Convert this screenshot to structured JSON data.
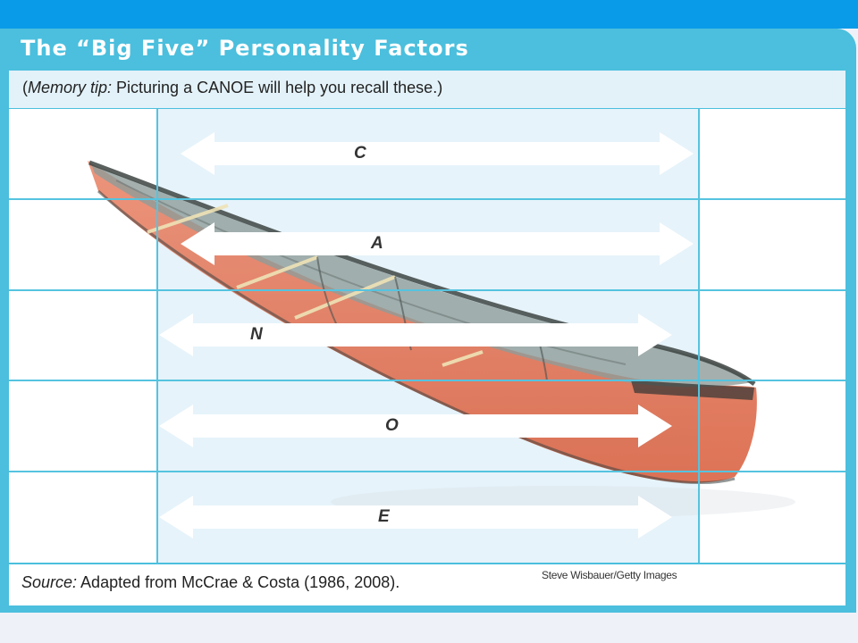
{
  "title": "The “Big Five” Personality Factors",
  "memory_tip": {
    "open_paren": "(",
    "label": "Memory tip:",
    "text": " Picturing a CANOE will help you recall these.)"
  },
  "factors": [
    {
      "letter": "C",
      "direction": "right"
    },
    {
      "letter": "A",
      "direction": "right"
    },
    {
      "letter": "N",
      "direction": "left"
    },
    {
      "letter": "O",
      "direction": "left"
    },
    {
      "letter": "E",
      "direction": "left"
    }
  ],
  "source": {
    "label": "Source:",
    "text": " Adapted from McCrae & Costa (1986, 2008)."
  },
  "photo_credit": "Steve Wisbauer/Getty Images",
  "colors": {
    "top_band": "#0a9be8",
    "panel": "#4bbfdd",
    "grid_lines": "#55c3df",
    "middle_column": "#e6f3fa",
    "arrow": "#ffffff",
    "canoe_hull": "#e5795a"
  },
  "image": {
    "subject": "canoe"
  }
}
